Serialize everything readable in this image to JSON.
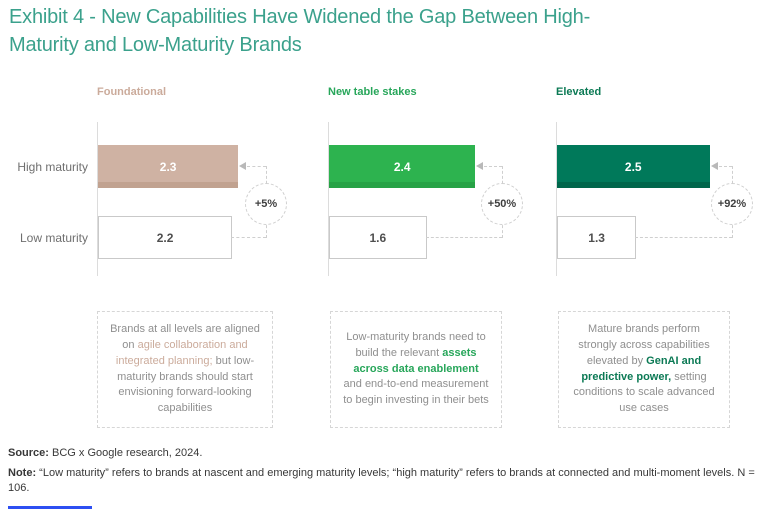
{
  "title": "Exhibit 4 - New Capabilities Have Widened the Gap Between High-Maturity and Low-Maturity Brands",
  "colors": {
    "title_teal": "#3BA18C",
    "accent_blue": "#2D4FF2",
    "dashed_gray": "#CFCFCF",
    "label_gray": "#6F6F6F",
    "body_gray": "#8F8F8F"
  },
  "chart_data": {
    "type": "bar",
    "orientation": "horizontal",
    "series": [
      "High maturity",
      "Low maturity"
    ],
    "value_range": [
      0,
      3
    ],
    "grid": false,
    "groups": [
      {
        "title": "Foundational",
        "header_color": "#CBAB9B",
        "bar_color": "#CFB2A3",
        "bar_edge_color": "#C1A290",
        "high": 2.3,
        "low": 2.2,
        "delta": "+5%"
      },
      {
        "title": "New table stakes",
        "header_color": "#27A65A",
        "bar_color": "#2DB34F",
        "bar_edge_color": "#27A246",
        "high": 2.4,
        "low": 1.6,
        "delta": "+50%"
      },
      {
        "title": "Elevated",
        "header_color": "#0C7A55",
        "bar_color": "#00795A",
        "bar_edge_color": "#00664B",
        "high": 2.5,
        "low": 1.3,
        "delta": "+92%"
      }
    ]
  },
  "row_labels": {
    "high": "High maturity",
    "low": "Low maturity"
  },
  "insights": [
    {
      "segments": [
        {
          "t": "Brands at all levels are aligned on ",
          "s": "plain"
        },
        {
          "t": "agile collaboration and integrated planning;",
          "s": "tan"
        },
        {
          "t": " but low-maturity brands should start envisioning forward-looking capabilities",
          "s": "plain"
        }
      ]
    },
    {
      "segments": [
        {
          "t": "Low-maturity brands need to build the relevant ",
          "s": "plain"
        },
        {
          "t": "assets across data enablement",
          "s": "green"
        },
        {
          "t": " and end-to-end measurement to begin investing in their bets",
          "s": "plain"
        }
      ]
    },
    {
      "segments": [
        {
          "t": "Mature brands perform strongly across capabilities elevated by ",
          "s": "plain"
        },
        {
          "t": "GenAI and predictive power,",
          "s": "darkgreen"
        },
        {
          "t": " setting conditions to scale advanced use cases",
          "s": "plain"
        }
      ]
    }
  ],
  "footer": {
    "source_label": "Source:",
    "source_text": " BCG x Google research, 2024.",
    "note_label": "Note:",
    "note_text": " “Low maturity” refers to brands at nascent and emerging maturity levels; “high maturity” refers to brands at connected and multi-moment levels. N = 106."
  }
}
